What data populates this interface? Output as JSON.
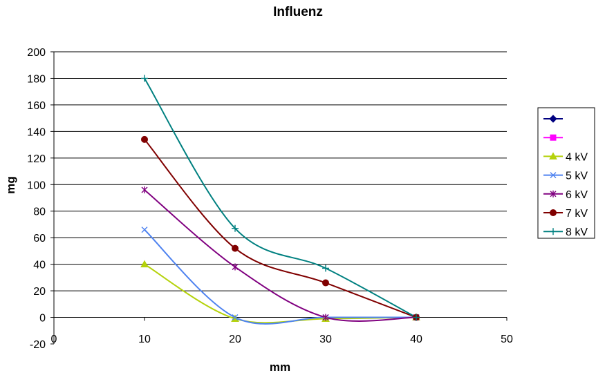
{
  "chart_data": {
    "type": "scatter",
    "title": "Influenz",
    "xlabel": "mm",
    "ylabel": "mg",
    "xlim": [
      0,
      50
    ],
    "ylim": [
      -20,
      200
    ],
    "xticks": [
      0,
      10,
      20,
      30,
      40,
      50
    ],
    "yticks": [
      -20,
      0,
      20,
      40,
      60,
      80,
      100,
      120,
      140,
      160,
      180,
      200
    ],
    "grid": "horizontal",
    "smoothed": true,
    "legend_position": "right",
    "series": [
      {
        "name": "",
        "color": "#000080",
        "marker": "diamond",
        "x": [],
        "y": []
      },
      {
        "name": "",
        "color": "#ff00ff",
        "marker": "square",
        "x": [],
        "y": []
      },
      {
        "name": "4 kV",
        "color": "#b5d20b",
        "marker": "triangle",
        "x": [
          10,
          20,
          30,
          40
        ],
        "y": [
          40,
          -1,
          -1,
          0
        ]
      },
      {
        "name": "5 kV",
        "color": "#4f83f0",
        "marker": "x",
        "x": [
          10,
          20,
          30,
          40
        ],
        "y": [
          66,
          0,
          0,
          0
        ]
      },
      {
        "name": "6 kV",
        "color": "#800080",
        "marker": "star",
        "x": [
          10,
          20,
          30,
          40
        ],
        "y": [
          96,
          38,
          0,
          0
        ]
      },
      {
        "name": "7 kV",
        "color": "#800000",
        "marker": "circle",
        "x": [
          10,
          20,
          30,
          40
        ],
        "y": [
          134,
          52,
          26,
          0
        ]
      },
      {
        "name": "8 kV",
        "color": "#008080",
        "marker": "plus",
        "x": [
          10,
          20,
          30,
          40
        ],
        "y": [
          180,
          67,
          37,
          0
        ]
      }
    ]
  }
}
